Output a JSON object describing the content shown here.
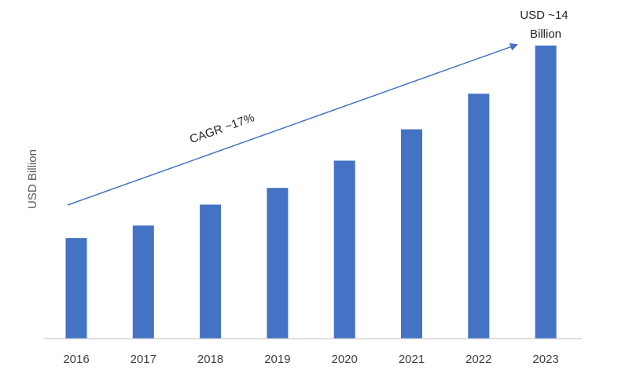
{
  "chart_data": {
    "type": "bar",
    "title": "",
    "xlabel": "",
    "ylabel": "USD Billion",
    "categories": [
      "2016",
      "2017",
      "2018",
      "2019",
      "2020",
      "2021",
      "2022",
      "2023"
    ],
    "values": [
      4.8,
      5.4,
      6.4,
      7.2,
      8.5,
      10.0,
      11.7,
      14.0
    ],
    "ylim": [
      0,
      15
    ],
    "grid": false,
    "bar_color": "#4472C4",
    "annotations": {
      "cagr": "CAGR ~17%",
      "final_value_line1": "USD ~14",
      "final_value_line2": "Billion"
    },
    "arrow_color": "#4472C4",
    "axis_color": "#BFBFBF"
  }
}
